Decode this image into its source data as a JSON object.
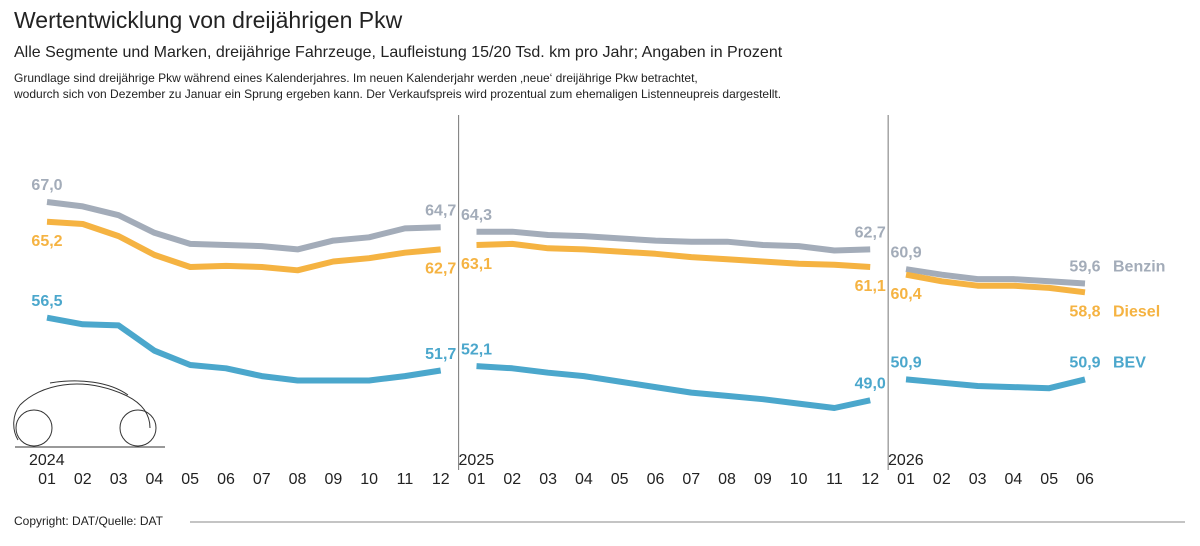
{
  "chart_data": {
    "type": "line",
    "title": "Wertentwicklung von dreijährigen Pkw",
    "subtitle": "Alle Segmente und Marken, dreijährige Fahrzeuge, Laufleistung 15/20 Tsd. km pro Jahr; Angaben in Prozent",
    "note": [
      "Grundlage sind dreijährige Pkw während eines Kalenderjahres. Im neuen Kalenderjahr werden ‚neue‘ dreijährige Pkw betrachtet,",
      "wodurch sich von Dezember zu Januar ein Sprung ergeben kann. Der Verkaufspreis wird prozentual zum ehemaligen Listenneupreis dargestellt."
    ],
    "years": [
      "2024",
      "2025",
      "2026"
    ],
    "categories": [
      "01",
      "02",
      "03",
      "04",
      "05",
      "06",
      "07",
      "08",
      "09",
      "10",
      "11",
      "12",
      "01",
      "02",
      "03",
      "04",
      "05",
      "06",
      "07",
      "08",
      "09",
      "10",
      "11",
      "12",
      "01",
      "02",
      "03",
      "04",
      "05",
      "06"
    ],
    "series": [
      {
        "name": "Benzin",
        "color": "#a3acb9",
        "values": [
          67.0,
          66.6,
          65.8,
          64.2,
          63.2,
          63.1,
          63.0,
          62.7,
          63.5,
          63.8,
          64.6,
          64.7,
          64.3,
          64.3,
          64.0,
          63.9,
          63.7,
          63.5,
          63.4,
          63.4,
          63.1,
          63.0,
          62.6,
          62.7,
          60.9,
          60.4,
          60.0,
          60.0,
          59.8,
          59.6
        ],
        "value_labels": [
          "67,0",
          null,
          null,
          null,
          null,
          null,
          null,
          null,
          null,
          null,
          null,
          "64,7",
          "64,3",
          null,
          null,
          null,
          null,
          null,
          null,
          null,
          null,
          null,
          null,
          "62,7",
          "60,9",
          null,
          null,
          null,
          null,
          "59,6"
        ]
      },
      {
        "name": "Diesel",
        "color": "#f5b342",
        "values": [
          65.2,
          65.0,
          63.9,
          62.2,
          61.1,
          61.2,
          61.1,
          60.8,
          61.6,
          61.9,
          62.4,
          62.7,
          63.1,
          63.2,
          62.8,
          62.7,
          62.5,
          62.3,
          62.0,
          61.8,
          61.6,
          61.4,
          61.3,
          61.1,
          60.4,
          59.8,
          59.4,
          59.4,
          59.2,
          58.8
        ],
        "value_labels": [
          "65,2",
          null,
          null,
          null,
          null,
          null,
          null,
          null,
          null,
          null,
          null,
          "62,7",
          "63,1",
          null,
          null,
          null,
          null,
          null,
          null,
          null,
          null,
          null,
          null,
          "61,1",
          "60,4",
          null,
          null,
          null,
          null,
          "58,8"
        ]
      },
      {
        "name": "BEV",
        "color": "#4ba7cc",
        "values": [
          56.5,
          55.9,
          55.8,
          53.5,
          52.2,
          51.9,
          51.2,
          50.8,
          50.8,
          50.8,
          51.2,
          51.7,
          52.1,
          51.9,
          51.5,
          51.2,
          50.7,
          50.2,
          49.7,
          49.4,
          49.1,
          48.7,
          48.3,
          49.0,
          50.9,
          50.6,
          50.3,
          50.2,
          50.1,
          50.9
        ],
        "value_labels": [
          "56,5",
          null,
          null,
          null,
          null,
          null,
          null,
          null,
          null,
          null,
          null,
          "51,7",
          "52,1",
          null,
          null,
          null,
          null,
          null,
          null,
          null,
          null,
          null,
          null,
          "49,0",
          "50,9",
          null,
          null,
          null,
          null,
          "50,9"
        ]
      }
    ],
    "source": "Copyright: DAT/Quelle: DAT"
  }
}
